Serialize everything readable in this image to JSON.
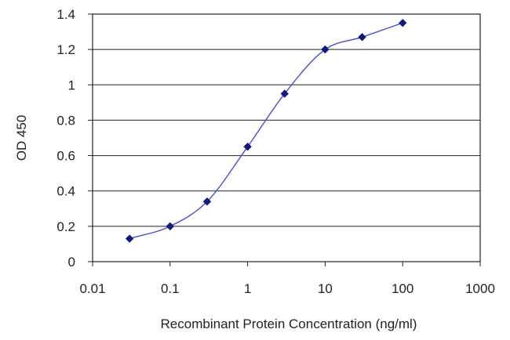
{
  "chart_data": {
    "type": "line",
    "title": "",
    "xlabel": "Recombinant Protein Concentration (ng/ml)",
    "ylabel": "OD 450",
    "x_scale": "log",
    "xlim": [
      0.01,
      1000
    ],
    "ylim": [
      0,
      1.4
    ],
    "x_tick_labels": [
      "0.01",
      "0.1",
      "1",
      "10",
      "100",
      "1000"
    ],
    "x_tick_values": [
      0.01,
      0.1,
      1,
      10,
      100,
      1000
    ],
    "y_tick_labels": [
      "0",
      "0.2",
      "0.4",
      "0.6",
      "0.8",
      "1",
      "1.2",
      "1.4"
    ],
    "y_tick_values": [
      0,
      0.2,
      0.4,
      0.6,
      0.8,
      1,
      1.2,
      1.4
    ],
    "grid": "horizontal",
    "legend": "none",
    "series": [
      {
        "x": [
          0.03,
          0.1,
          0.3,
          1,
          3,
          10,
          30,
          100
        ],
        "y": [
          0.13,
          0.2,
          0.34,
          0.65,
          0.95,
          1.2,
          1.27,
          1.35
        ],
        "color": "#4a4ec8",
        "marker_color": "#15187a"
      }
    ]
  }
}
